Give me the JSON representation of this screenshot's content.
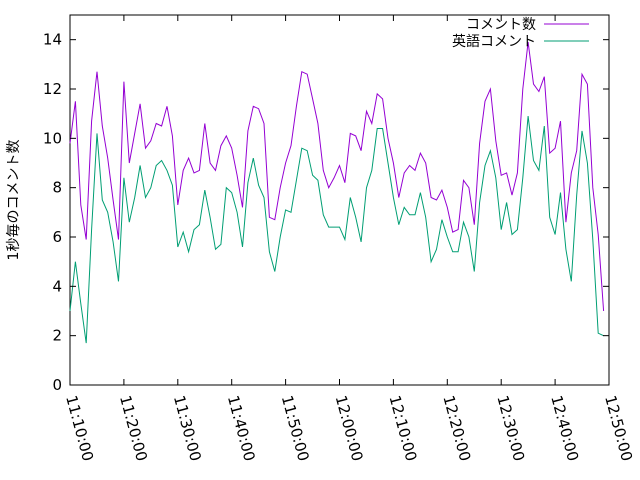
{
  "chart_data": {
    "type": "line",
    "title": "",
    "xlabel": "",
    "ylabel": "1秒毎のコメント数",
    "ylim": [
      0,
      15
    ],
    "yticks": [
      0,
      2,
      4,
      6,
      8,
      10,
      12,
      14
    ],
    "xlim": [
      "11:10:00",
      "12:50:00"
    ],
    "xticks": [
      "11:10:00",
      "11:20:00",
      "11:30:00",
      "11:40:00",
      "11:50:00",
      "12:00:00",
      "12:10:00",
      "12:20:00",
      "12:30:00",
      "12:40:00",
      "12:50:00"
    ],
    "legend_position": "top-right",
    "grid": false,
    "series": [
      {
        "name": "コメント数",
        "color": "#9400d3",
        "points": [
          [
            "11:10:00",
            9.8
          ],
          [
            "11:11:00",
            11.5
          ],
          [
            "11:12:00",
            7.3
          ],
          [
            "11:13:00",
            5.9
          ],
          [
            "11:14:00",
            10.7
          ],
          [
            "11:15:00",
            12.7
          ],
          [
            "11:16:00",
            10.5
          ],
          [
            "11:17:00",
            9.2
          ],
          [
            "11:18:00",
            7.5
          ],
          [
            "11:19:00",
            5.9
          ],
          [
            "11:20:00",
            12.3
          ],
          [
            "11:21:00",
            9.0
          ],
          [
            "11:22:00",
            10.2
          ],
          [
            "11:23:00",
            11.4
          ],
          [
            "11:24:00",
            9.6
          ],
          [
            "11:25:00",
            9.9
          ],
          [
            "11:26:00",
            10.6
          ],
          [
            "11:27:00",
            10.5
          ],
          [
            "11:28:00",
            11.3
          ],
          [
            "11:29:00",
            10.1
          ],
          [
            "11:30:00",
            7.3
          ],
          [
            "11:31:00",
            8.7
          ],
          [
            "11:32:00",
            9.2
          ],
          [
            "11:33:00",
            8.6
          ],
          [
            "11:34:00",
            8.7
          ],
          [
            "11:35:00",
            10.6
          ],
          [
            "11:36:00",
            9.0
          ],
          [
            "11:37:00",
            8.7
          ],
          [
            "11:38:00",
            9.7
          ],
          [
            "11:39:00",
            10.1
          ],
          [
            "11:40:00",
            9.6
          ],
          [
            "11:41:00",
            8.5
          ],
          [
            "11:42:00",
            7.2
          ],
          [
            "11:43:00",
            10.3
          ],
          [
            "11:44:00",
            11.3
          ],
          [
            "11:45:00",
            11.2
          ],
          [
            "11:46:00",
            10.6
          ],
          [
            "11:47:00",
            6.8
          ],
          [
            "11:48:00",
            6.7
          ],
          [
            "11:49:00",
            8.0
          ],
          [
            "11:50:00",
            9.0
          ],
          [
            "11:51:00",
            9.7
          ],
          [
            "11:52:00",
            11.3
          ],
          [
            "11:53:00",
            12.7
          ],
          [
            "11:54:00",
            12.6
          ],
          [
            "11:55:00",
            11.6
          ],
          [
            "11:56:00",
            10.6
          ],
          [
            "11:57:00",
            8.7
          ],
          [
            "11:58:00",
            8.0
          ],
          [
            "11:59:00",
            8.4
          ],
          [
            "12:00:00",
            8.9
          ],
          [
            "12:01:00",
            8.2
          ],
          [
            "12:02:00",
            10.2
          ],
          [
            "12:03:00",
            10.1
          ],
          [
            "12:04:00",
            9.5
          ],
          [
            "12:05:00",
            11.1
          ],
          [
            "12:06:00",
            10.6
          ],
          [
            "12:07:00",
            11.8
          ],
          [
            "12:08:00",
            11.6
          ],
          [
            "12:09:00",
            10.0
          ],
          [
            "12:10:00",
            9.0
          ],
          [
            "12:11:00",
            7.6
          ],
          [
            "12:12:00",
            8.6
          ],
          [
            "12:13:00",
            8.9
          ],
          [
            "12:14:00",
            8.7
          ],
          [
            "12:15:00",
            9.4
          ],
          [
            "12:16:00",
            9.0
          ],
          [
            "12:17:00",
            7.6
          ],
          [
            "12:18:00",
            7.5
          ],
          [
            "12:19:00",
            7.9
          ],
          [
            "12:20:00",
            7.2
          ],
          [
            "12:21:00",
            6.2
          ],
          [
            "12:22:00",
            6.3
          ],
          [
            "12:23:00",
            8.3
          ],
          [
            "12:24:00",
            8.0
          ],
          [
            "12:25:00",
            6.5
          ],
          [
            "12:26:00",
            9.8
          ],
          [
            "12:27:00",
            11.5
          ],
          [
            "12:28:00",
            12.0
          ],
          [
            "12:29:00",
            9.9
          ],
          [
            "12:30:00",
            8.5
          ],
          [
            "12:31:00",
            8.6
          ],
          [
            "12:32:00",
            7.7
          ],
          [
            "12:33:00",
            8.6
          ],
          [
            "12:34:00",
            12.0
          ],
          [
            "12:35:00",
            13.9
          ],
          [
            "12:36:00",
            12.2
          ],
          [
            "12:37:00",
            11.9
          ],
          [
            "12:38:00",
            12.5
          ],
          [
            "12:39:00",
            9.4
          ],
          [
            "12:40:00",
            9.6
          ],
          [
            "12:41:00",
            10.7
          ],
          [
            "12:42:00",
            6.6
          ],
          [
            "12:43:00",
            8.6
          ],
          [
            "12:44:00",
            9.5
          ],
          [
            "12:45:00",
            12.6
          ],
          [
            "12:46:00",
            12.2
          ],
          [
            "12:47:00",
            8.0
          ],
          [
            "12:48:00",
            6.1
          ],
          [
            "12:49:00",
            3.0
          ]
        ]
      },
      {
        "name": "英語コメント",
        "color": "#009e73",
        "points": [
          [
            "11:10:00",
            3.0
          ],
          [
            "11:11:00",
            5.0
          ],
          [
            "11:12:00",
            3.3
          ],
          [
            "11:13:00",
            1.7
          ],
          [
            "11:14:00",
            6.3
          ],
          [
            "11:15:00",
            10.2
          ],
          [
            "11:16:00",
            7.5
          ],
          [
            "11:17:00",
            7.0
          ],
          [
            "11:18:00",
            5.8
          ],
          [
            "11:19:00",
            4.2
          ],
          [
            "11:20:00",
            8.4
          ],
          [
            "11:21:00",
            6.6
          ],
          [
            "11:22:00",
            7.6
          ],
          [
            "11:23:00",
            8.9
          ],
          [
            "11:24:00",
            7.6
          ],
          [
            "11:25:00",
            8.0
          ],
          [
            "11:26:00",
            8.9
          ],
          [
            "11:27:00",
            9.1
          ],
          [
            "11:28:00",
            8.7
          ],
          [
            "11:29:00",
            8.1
          ],
          [
            "11:30:00",
            5.6
          ],
          [
            "11:31:00",
            6.2
          ],
          [
            "11:32:00",
            5.4
          ],
          [
            "11:33:00",
            6.3
          ],
          [
            "11:34:00",
            6.5
          ],
          [
            "11:35:00",
            7.9
          ],
          [
            "11:36:00",
            6.8
          ],
          [
            "11:37:00",
            5.5
          ],
          [
            "11:38:00",
            5.7
          ],
          [
            "11:39:00",
            8.0
          ],
          [
            "11:40:00",
            7.8
          ],
          [
            "11:41:00",
            7.0
          ],
          [
            "11:42:00",
            5.6
          ],
          [
            "11:43:00",
            8.2
          ],
          [
            "11:44:00",
            9.2
          ],
          [
            "11:45:00",
            8.1
          ],
          [
            "11:46:00",
            7.6
          ],
          [
            "11:47:00",
            5.4
          ],
          [
            "11:48:00",
            4.6
          ],
          [
            "11:49:00",
            6.0
          ],
          [
            "11:50:00",
            7.1
          ],
          [
            "11:51:00",
            7.0
          ],
          [
            "11:52:00",
            8.3
          ],
          [
            "11:53:00",
            9.6
          ],
          [
            "11:54:00",
            9.5
          ],
          [
            "11:55:00",
            8.5
          ],
          [
            "11:56:00",
            8.3
          ],
          [
            "11:57:00",
            6.9
          ],
          [
            "11:58:00",
            6.4
          ],
          [
            "11:59:00",
            6.4
          ],
          [
            "12:00:00",
            6.4
          ],
          [
            "12:01:00",
            5.9
          ],
          [
            "12:02:00",
            7.6
          ],
          [
            "12:03:00",
            6.8
          ],
          [
            "12:04:00",
            5.8
          ],
          [
            "12:05:00",
            8.0
          ],
          [
            "12:06:00",
            8.7
          ],
          [
            "12:07:00",
            10.4
          ],
          [
            "12:08:00",
            10.4
          ],
          [
            "12:09:00",
            9.0
          ],
          [
            "12:10:00",
            7.6
          ],
          [
            "12:11:00",
            6.5
          ],
          [
            "12:12:00",
            7.2
          ],
          [
            "12:13:00",
            6.9
          ],
          [
            "12:14:00",
            6.9
          ],
          [
            "12:15:00",
            7.8
          ],
          [
            "12:16:00",
            6.8
          ],
          [
            "12:17:00",
            5.0
          ],
          [
            "12:18:00",
            5.5
          ],
          [
            "12:19:00",
            6.7
          ],
          [
            "12:20:00",
            6.0
          ],
          [
            "12:21:00",
            5.4
          ],
          [
            "12:22:00",
            5.4
          ],
          [
            "12:23:00",
            6.6
          ],
          [
            "12:24:00",
            6.0
          ],
          [
            "12:25:00",
            4.6
          ],
          [
            "12:26:00",
            7.4
          ],
          [
            "12:27:00",
            8.9
          ],
          [
            "12:28:00",
            9.5
          ],
          [
            "12:29:00",
            8.4
          ],
          [
            "12:30:00",
            6.3
          ],
          [
            "12:31:00",
            7.4
          ],
          [
            "12:32:00",
            6.1
          ],
          [
            "12:33:00",
            6.3
          ],
          [
            "12:34:00",
            8.4
          ],
          [
            "12:35:00",
            10.9
          ],
          [
            "12:36:00",
            9.1
          ],
          [
            "12:37:00",
            8.7
          ],
          [
            "12:38:00",
            10.5
          ],
          [
            "12:39:00",
            6.8
          ],
          [
            "12:40:00",
            6.1
          ],
          [
            "12:41:00",
            7.8
          ],
          [
            "12:42:00",
            5.5
          ],
          [
            "12:43:00",
            4.2
          ],
          [
            "12:44:00",
            7.7
          ],
          [
            "12:45:00",
            10.3
          ],
          [
            "12:46:00",
            9.0
          ],
          [
            "12:47:00",
            5.9
          ],
          [
            "12:48:00",
            2.1
          ],
          [
            "12:49:00",
            2.0
          ]
        ]
      }
    ]
  }
}
